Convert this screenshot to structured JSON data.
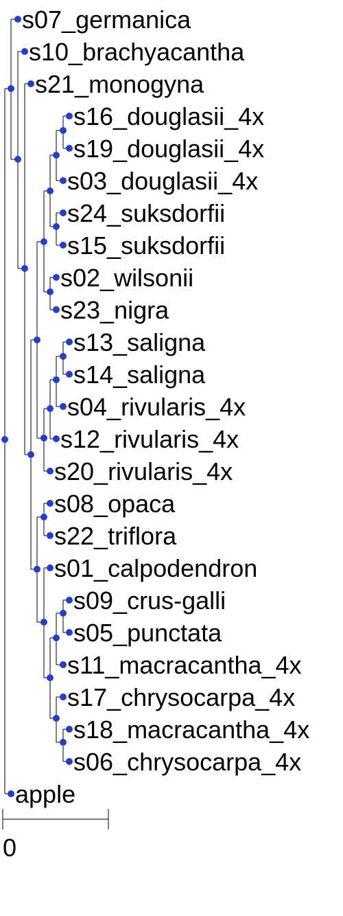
{
  "tree": {
    "colors": {
      "node": "#1f3fcc",
      "edge": "#000000",
      "text": "#000000"
    },
    "tips": [
      "s07_germanica",
      "s10_brachyacantha",
      "s21_monogyna",
      "s16_douglasii_4x",
      "s19_douglasii_4x",
      "s03_douglasii_4x",
      "s24_suksdorfii",
      "s15_suksdorfii",
      "s02_wilsonii",
      "s23_nigra",
      "s13_saligna",
      "s14_saligna",
      "s04_rivularis_4x",
      "s12_rivularis_4x",
      "s20_rivularis_4x",
      "s08_opaca",
      "s22_triflora",
      "s01_calpodendron",
      "s09_crus-galli",
      "s05_punctata",
      "s11_macracantha_4x",
      "s17_chrysocarpa_4x",
      "s18_macracantha_4x",
      "s06_chrysocarpa_4x",
      "apple"
    ],
    "scale_bar": {
      "label": "0"
    }
  }
}
